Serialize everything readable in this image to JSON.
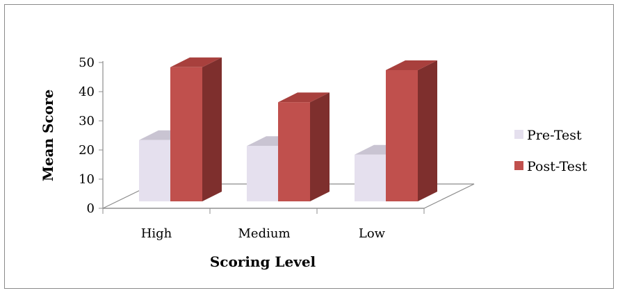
{
  "chart_data": {
    "type": "bar",
    "style": "3d-clustered-column",
    "categories": [
      "High",
      "Medium",
      "Low"
    ],
    "series": [
      {
        "name": "Pre-Test",
        "values": [
          21,
          19,
          16
        ],
        "color": "#e5e0ee",
        "side_color": "#b5b0bd",
        "top_color": "#c9c4d2"
      },
      {
        "name": "Post-Test",
        "values": [
          46,
          34,
          45
        ],
        "color": "#c0504d",
        "side_color": "#7e2f2d",
        "top_color": "#a8403d"
      }
    ],
    "xlabel": "Scoring Level",
    "ylabel": "Mean Score",
    "ylim": [
      0,
      50
    ],
    "yticks": [
      0,
      10,
      20,
      30,
      40,
      50
    ],
    "grid": false,
    "legend": "right"
  }
}
